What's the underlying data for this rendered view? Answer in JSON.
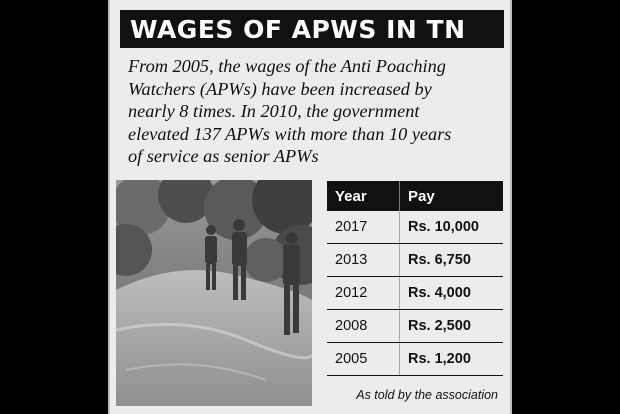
{
  "title": "WAGES OF APWS IN TN",
  "intro_lines": [
    "From 2005, the wages of the Anti Poaching",
    "Watchers (APWs) have been increased by",
    "nearly 8 times. In 2010, the government",
    "elevated 137 APWs with more than 10 years",
    "of service as senior APWs"
  ],
  "table": {
    "headers": {
      "year": "Year",
      "pay": "Pay"
    },
    "rows": [
      {
        "year": "2017",
        "pay": "Rs. 10,000"
      },
      {
        "year": "2013",
        "pay": "Rs. 6,750"
      },
      {
        "year": "2012",
        "pay": "Rs. 4,000"
      },
      {
        "year": "2008",
        "pay": "Rs. 2,500"
      },
      {
        "year": "2005",
        "pay": "Rs. 1,200"
      }
    ]
  },
  "source": "As told by the association"
}
